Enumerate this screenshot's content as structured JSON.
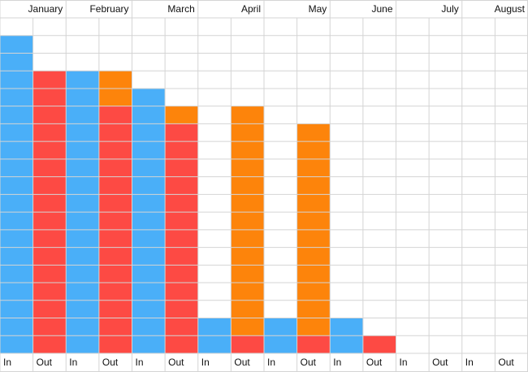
{
  "chart_data": {
    "type": "bar",
    "categories": [
      "January",
      "February",
      "March",
      "April",
      "May",
      "June",
      "July",
      "August"
    ],
    "series": [
      {
        "name": "In",
        "color": "#4aaff8",
        "values": [
          18,
          16,
          15,
          2,
          2,
          2,
          0,
          0
        ]
      },
      {
        "name": "Out",
        "color": "#fd4a44",
        "values": [
          16,
          14,
          13,
          1,
          1,
          1,
          0,
          0
        ]
      },
      {
        "color": "#fd840b",
        "values": [
          0,
          2,
          1,
          13,
          12,
          0,
          0,
          0
        ]
      }
    ],
    "ylim": [
      0,
      19
    ],
    "yticks": [
      0,
      1,
      2,
      3,
      4,
      5,
      6,
      7,
      8,
      9,
      10,
      11,
      12,
      13,
      14,
      15,
      16,
      17,
      18,
      19
    ],
    "grid": true
  }
}
